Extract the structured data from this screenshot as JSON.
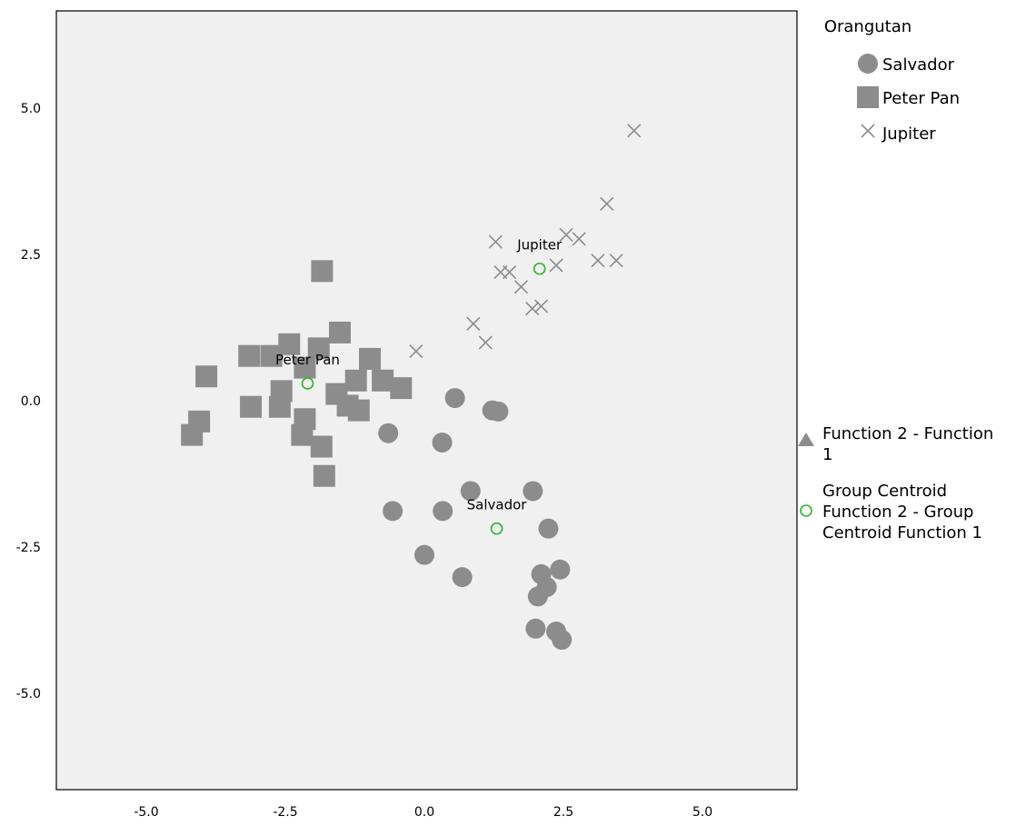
{
  "chart_data": {
    "type": "scatter",
    "title": "",
    "xlabel": "",
    "ylabel": "",
    "xlim": [
      -6.5,
      6.5
    ],
    "ylim": [
      -6.5,
      6.5
    ],
    "x_ticks": [
      "-5.0",
      "-2.5",
      "0.0",
      "2.5",
      "5.0"
    ],
    "y_ticks": [
      "5.0",
      "2.5",
      "0.0",
      "-2.5",
      "-5.0"
    ],
    "x_tick_values": [
      -5,
      -2.5,
      0,
      2.5,
      5
    ],
    "y_tick_values": [
      5,
      2.5,
      0,
      -2.5,
      -5
    ],
    "grid": false,
    "plot_background": "#f0f0f0",
    "marker_color": "#8c8c8c",
    "centroid_color": "#2db52d",
    "legend": {
      "title": "Orangutan",
      "entries": [
        "Salvador",
        "Peter Pan",
        "Jupiter"
      ],
      "secondary_entries": [
        "Function 2 - Function 1",
        "Group Centroid Function 2 - Group Centroid Function 1"
      ]
    },
    "series": [
      {
        "name": "Salvador",
        "marker": "circle",
        "points": [
          [
            0.55,
            0.03
          ],
          [
            1.22,
            -0.18
          ],
          [
            1.33,
            -0.2
          ],
          [
            -0.65,
            -0.57
          ],
          [
            0.32,
            -0.73
          ],
          [
            0.83,
            -1.56
          ],
          [
            1.95,
            -1.56
          ],
          [
            -0.57,
            -1.9
          ],
          [
            0.33,
            -1.9
          ],
          [
            2.23,
            -2.2
          ],
          [
            0.0,
            -2.65
          ],
          [
            0.68,
            -3.03
          ],
          [
            2.1,
            -2.98
          ],
          [
            2.44,
            -2.9
          ],
          [
            2.2,
            -3.2
          ],
          [
            2.04,
            -3.36
          ],
          [
            2.0,
            -3.91
          ],
          [
            2.37,
            -3.96
          ],
          [
            2.47,
            -4.1
          ]
        ]
      },
      {
        "name": "Peter Pan",
        "marker": "square",
        "points": [
          [
            -1.84,
            2.2
          ],
          [
            -1.52,
            1.15
          ],
          [
            -2.43,
            0.95
          ],
          [
            -1.9,
            0.88
          ],
          [
            -3.15,
            0.75
          ],
          [
            -2.75,
            0.75
          ],
          [
            -0.98,
            0.7
          ],
          [
            -2.15,
            0.55
          ],
          [
            -3.92,
            0.4
          ],
          [
            -1.23,
            0.33
          ],
          [
            -0.75,
            0.33
          ],
          [
            -0.42,
            0.2
          ],
          [
            -2.57,
            0.15
          ],
          [
            -1.58,
            0.1
          ],
          [
            -1.38,
            -0.1
          ],
          [
            -1.18,
            -0.18
          ],
          [
            -3.12,
            -0.12
          ],
          [
            -2.6,
            -0.12
          ],
          [
            -2.15,
            -0.33
          ],
          [
            -4.05,
            -0.37
          ],
          [
            -4.18,
            -0.6
          ],
          [
            -2.2,
            -0.6
          ],
          [
            -1.85,
            -0.8
          ],
          [
            -1.8,
            -1.3
          ]
        ]
      },
      {
        "name": "Jupiter",
        "marker": "x",
        "points": [
          [
            3.77,
            4.6
          ],
          [
            3.28,
            3.35
          ],
          [
            2.55,
            2.82
          ],
          [
            2.78,
            2.75
          ],
          [
            1.28,
            2.7
          ],
          [
            2.37,
            2.3
          ],
          [
            3.12,
            2.38
          ],
          [
            3.45,
            2.38
          ],
          [
            1.37,
            2.18
          ],
          [
            1.53,
            2.18
          ],
          [
            1.74,
            1.93
          ],
          [
            2.1,
            1.6
          ],
          [
            1.94,
            1.56
          ],
          [
            0.88,
            1.3
          ],
          [
            1.1,
            0.98
          ],
          [
            -0.15,
            0.83
          ]
        ]
      }
    ],
    "centroids": [
      {
        "name": "Jupiter",
        "label": "Jupiter",
        "x": 2.07,
        "y": 2.24
      },
      {
        "name": "Peter Pan",
        "label": "Peter Pan",
        "x": -2.1,
        "y": 0.28
      },
      {
        "name": "Salvador",
        "label": "Salvador",
        "x": 1.3,
        "y": -2.2
      }
    ]
  }
}
